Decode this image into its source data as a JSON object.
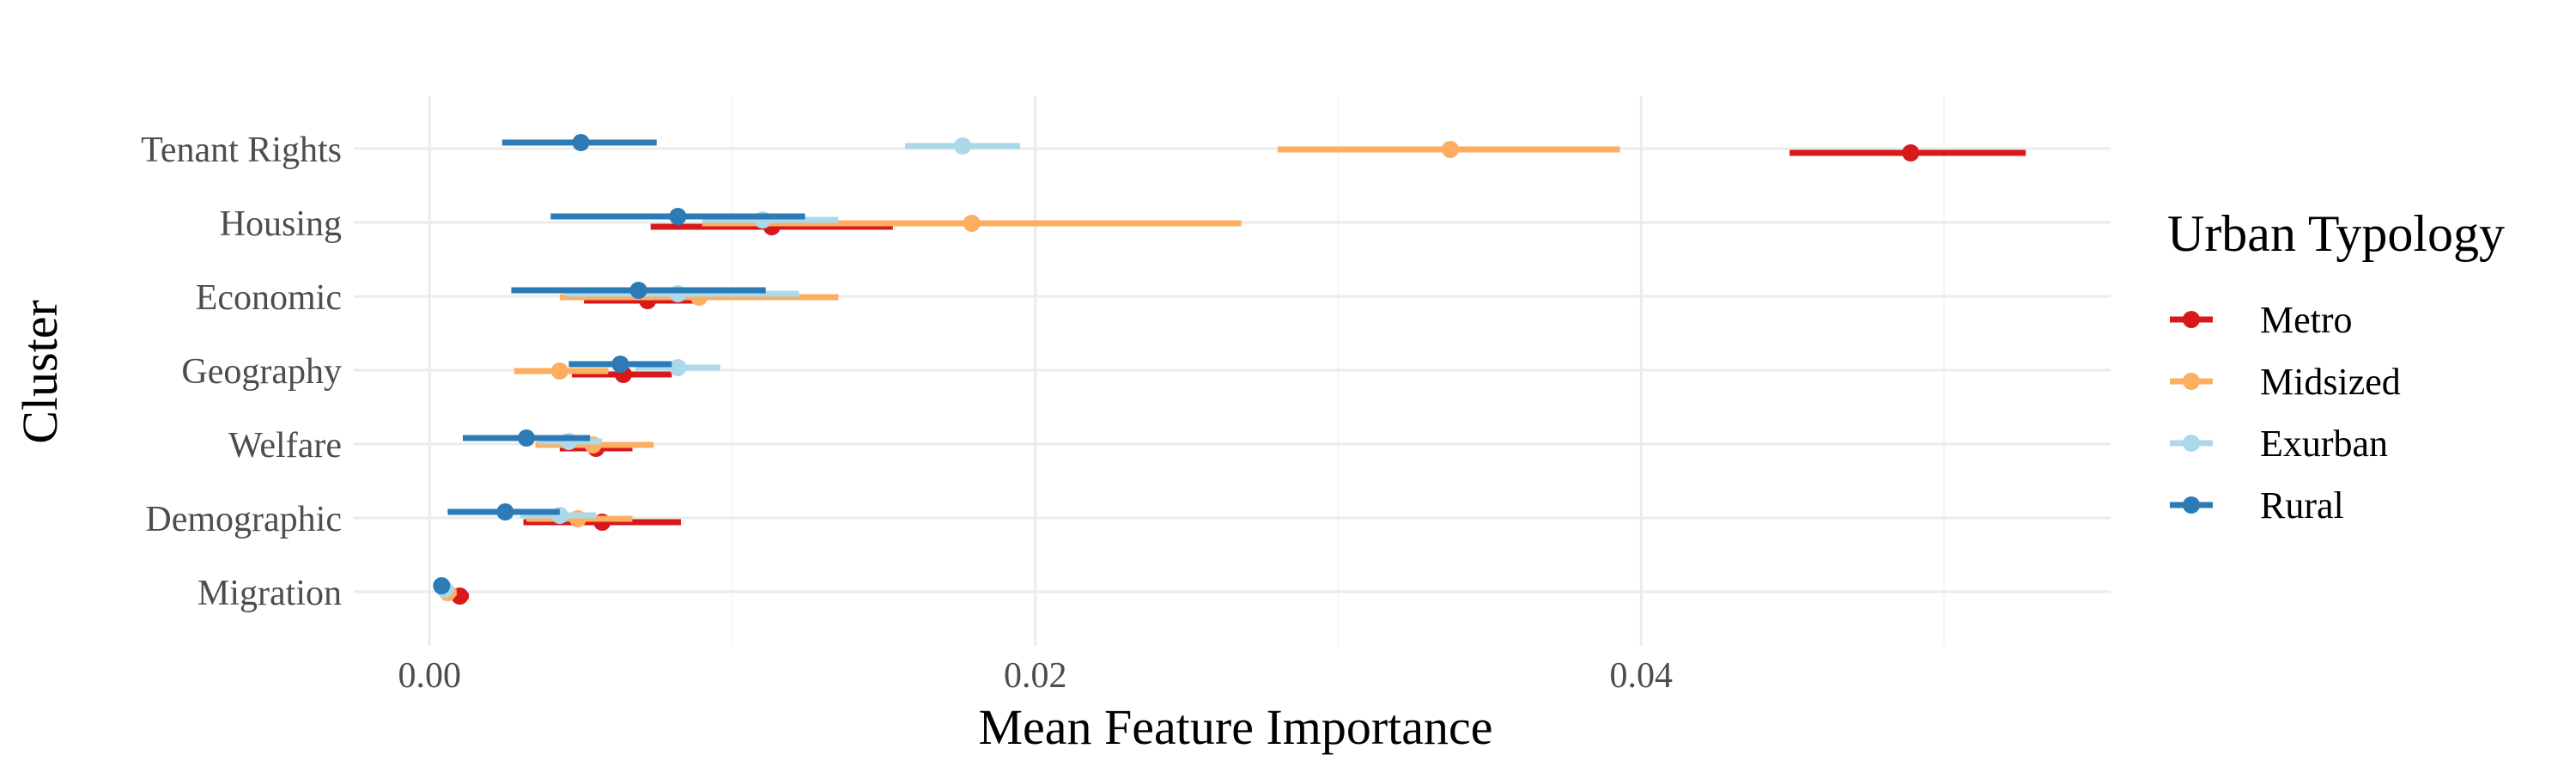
{
  "chart_data": {
    "type": "dot-range",
    "title": "",
    "xlabel": "Mean Feature Importance",
    "ylabel": "Cluster",
    "xlim": [
      -0.0025,
      0.0555
    ],
    "x_ticks": [
      0.0,
      0.02,
      0.04
    ],
    "x_tick_labels": [
      "0.00",
      "0.02",
      "0.04"
    ],
    "grid": true,
    "legend": {
      "title": "Urban Typology",
      "placement": "right"
    },
    "categories": [
      "Tenant Rights",
      "Housing",
      "Economic",
      "Geography",
      "Welfare",
      "Demographic",
      "Migration"
    ],
    "series": [
      {
        "name": "Metro",
        "color": "#d7191c",
        "points": [
          {
            "category": "Tenant Rights",
            "mean": 0.0489,
            "low": 0.0449,
            "high": 0.0527
          },
          {
            "category": "Housing",
            "mean": 0.0113,
            "low": 0.0073,
            "high": 0.0153
          },
          {
            "category": "Economic",
            "mean": 0.0072,
            "low": 0.0051,
            "high": 0.0091
          },
          {
            "category": "Geography",
            "mean": 0.0064,
            "low": 0.0047,
            "high": 0.008
          },
          {
            "category": "Welfare",
            "mean": 0.0055,
            "low": 0.0043,
            "high": 0.0067
          },
          {
            "category": "Demographic",
            "mean": 0.0057,
            "low": 0.0031,
            "high": 0.0083
          },
          {
            "category": "Migration",
            "mean": 0.001,
            "low": 0.0007,
            "high": 0.0013
          }
        ]
      },
      {
        "name": "Midsized",
        "color": "#fdae61",
        "points": [
          {
            "category": "Tenant Rights",
            "mean": 0.0337,
            "low": 0.028,
            "high": 0.0393
          },
          {
            "category": "Housing",
            "mean": 0.0179,
            "low": 0.009,
            "high": 0.0268
          },
          {
            "category": "Economic",
            "mean": 0.0089,
            "low": 0.0043,
            "high": 0.0135
          },
          {
            "category": "Geography",
            "mean": 0.0043,
            "low": 0.0028,
            "high": 0.0059
          },
          {
            "category": "Welfare",
            "mean": 0.0054,
            "low": 0.0035,
            "high": 0.0074
          },
          {
            "category": "Demographic",
            "mean": 0.0049,
            "low": 0.0032,
            "high": 0.0067
          },
          {
            "category": "Migration",
            "mean": 0.0006,
            "low": 0.0003,
            "high": 0.0009
          }
        ]
      },
      {
        "name": "Exurban",
        "color": "#abd9e9",
        "points": [
          {
            "category": "Tenant Rights",
            "mean": 0.0176,
            "low": 0.0157,
            "high": 0.0195
          },
          {
            "category": "Housing",
            "mean": 0.011,
            "low": 0.009,
            "high": 0.0135
          },
          {
            "category": "Economic",
            "mean": 0.0082,
            "low": 0.0045,
            "high": 0.0122
          },
          {
            "category": "Geography",
            "mean": 0.0082,
            "low": 0.0068,
            "high": 0.0096
          },
          {
            "category": "Welfare",
            "mean": 0.0046,
            "low": 0.0036,
            "high": 0.0057
          },
          {
            "category": "Demographic",
            "mean": 0.0043,
            "low": 0.003,
            "high": 0.0055
          },
          {
            "category": "Migration",
            "mean": 0.0005,
            "low": 0.0002,
            "high": 0.0008
          }
        ]
      },
      {
        "name": "Rural",
        "color": "#2c7bb6",
        "points": [
          {
            "category": "Tenant Rights",
            "mean": 0.005,
            "low": 0.0024,
            "high": 0.0075
          },
          {
            "category": "Housing",
            "mean": 0.0082,
            "low": 0.004,
            "high": 0.0124
          },
          {
            "category": "Economic",
            "mean": 0.0069,
            "low": 0.0027,
            "high": 0.0111
          },
          {
            "category": "Geography",
            "mean": 0.0063,
            "low": 0.0046,
            "high": 0.008
          },
          {
            "category": "Welfare",
            "mean": 0.0032,
            "low": 0.0011,
            "high": 0.0053
          },
          {
            "category": "Demographic",
            "mean": 0.0025,
            "low": 0.0006,
            "high": 0.0043
          },
          {
            "category": "Migration",
            "mean": 0.0004,
            "low": 0.0002,
            "high": 0.0006
          }
        ]
      }
    ]
  }
}
